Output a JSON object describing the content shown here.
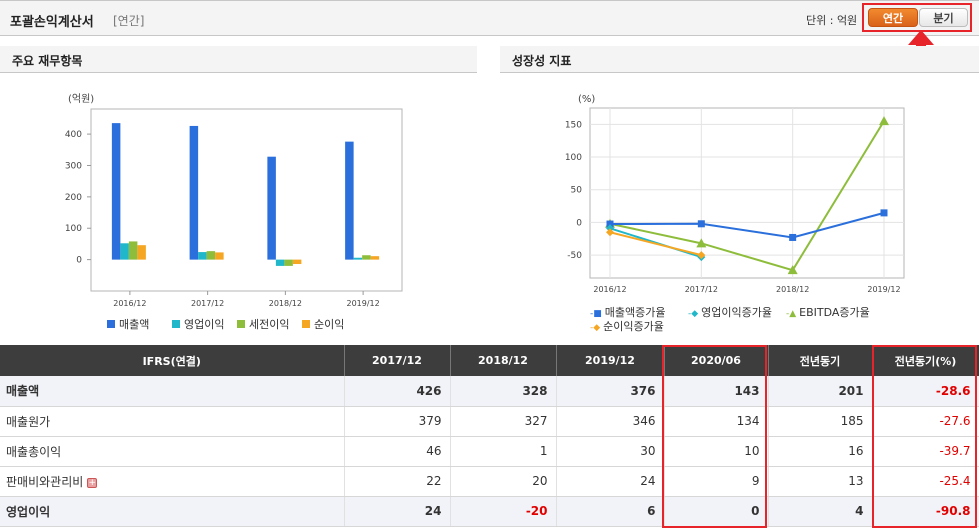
{
  "header": {
    "title": "포괄손익계산서",
    "subtitle": "[연간]",
    "unit_label": "단위 : 억원",
    "toggle_annual": "연간",
    "toggle_quarter": "분기"
  },
  "colors": {
    "revenue": "#2a6fdb",
    "operating": "#1fb7c9",
    "pretax": "#8ebd3c",
    "net": "#f5a623",
    "highlight": "#e8242b",
    "negative": "#e10000"
  },
  "chart_data": [
    {
      "type": "bar",
      "title": "주요 재무항목",
      "ylabel": "(억원)",
      "categories": [
        "2016/12",
        "2017/12",
        "2018/12",
        "2019/12"
      ],
      "series": [
        {
          "name": "매출액",
          "values": [
            435,
            426,
            328,
            376
          ]
        },
        {
          "name": "영업이익",
          "values": [
            52,
            24,
            -20,
            6
          ]
        },
        {
          "name": "세전이익",
          "values": [
            58,
            27,
            -20,
            14
          ]
        },
        {
          "name": "순이익",
          "values": [
            46,
            23,
            -14,
            11
          ]
        }
      ],
      "ylim": [
        -100,
        480
      ],
      "yticks": [
        0,
        100,
        200,
        300,
        400
      ],
      "grid": false,
      "legend": "bottom"
    },
    {
      "type": "line",
      "title": "성장성 지표",
      "ylabel": "(%)",
      "categories": [
        "2016/12",
        "2017/12",
        "2018/12",
        "2019/12"
      ],
      "series": [
        {
          "name": "매출액증가율",
          "values": [
            -2.5,
            -2.1,
            -23.0,
            14.6
          ]
        },
        {
          "name": "영업이익증가율",
          "values": [
            -9.0,
            -53.0,
            null,
            null
          ]
        },
        {
          "name": "EBITDA증가율",
          "values": [
            -2.0,
            -32.0,
            -73.0,
            155.0
          ]
        },
        {
          "name": "순이익증가율",
          "values": [
            -15.0,
            -50.0,
            null,
            null
          ]
        }
      ],
      "ylim": [
        -85,
        175
      ],
      "yticks": [
        -50,
        0,
        50,
        100,
        150
      ],
      "grid": true,
      "legend": "bottom"
    }
  ],
  "table": {
    "headers": [
      "IFRS(연결)",
      "2017/12",
      "2018/12",
      "2019/12",
      "2020/06",
      "전년동기",
      "전년동기(%)"
    ],
    "rows": [
      {
        "name": "매출액",
        "bold": true,
        "values": [
          "426",
          "328",
          "376",
          "143",
          "201",
          "-28.6"
        ]
      },
      {
        "name": "매출원가",
        "bold": false,
        "values": [
          "379",
          "327",
          "346",
          "134",
          "185",
          "-27.6"
        ]
      },
      {
        "name": "매출총이익",
        "bold": false,
        "values": [
          "46",
          "1",
          "30",
          "10",
          "16",
          "-39.7"
        ]
      },
      {
        "name": "판매비와관리비",
        "bold": false,
        "expand": "+",
        "values": [
          "22",
          "20",
          "24",
          "9",
          "13",
          "-25.4"
        ]
      },
      {
        "name": "영업이익",
        "bold": true,
        "values": [
          "24",
          "-20",
          "6",
          "0",
          "4",
          "-90.8"
        ]
      }
    ]
  }
}
